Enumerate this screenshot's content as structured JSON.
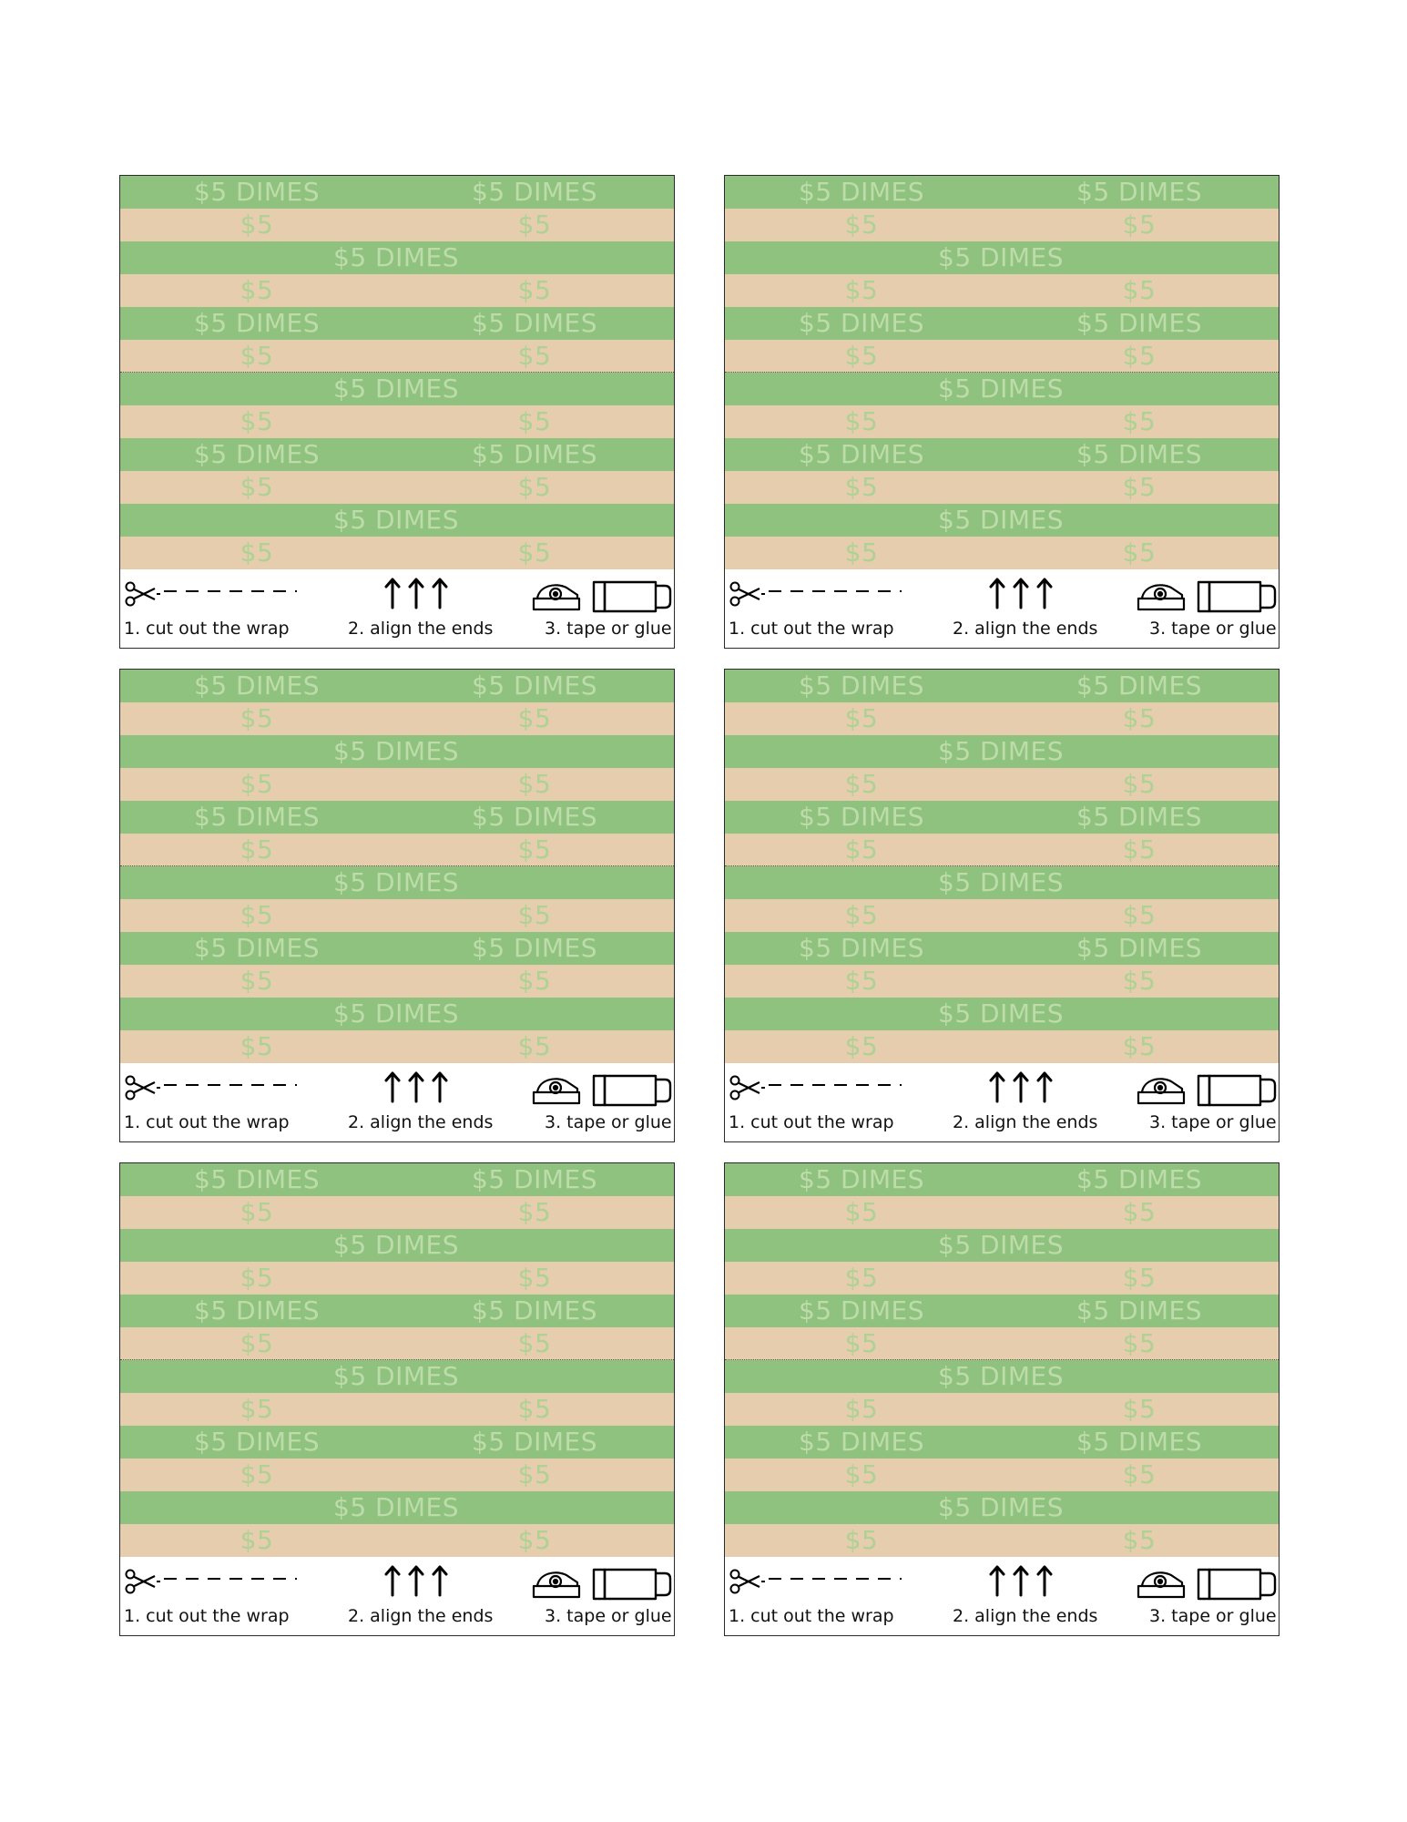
{
  "wrapper": {
    "dimes_label": "$5 DIMES",
    "short_label": "$5",
    "colors": {
      "green_band": "#8fc27e",
      "tan_band": "#e6cdae",
      "label_text": "#bddcaa"
    },
    "steps": {
      "cut": "1. cut out the wrap",
      "align": "2. align the ends",
      "tape": "3. tape or glue"
    },
    "icons": [
      "scissors-icon",
      "up-arrows-icon",
      "tape-dispenser-icon",
      "glue-stick-icon"
    ]
  },
  "sheet": {
    "wrapper_count": 6,
    "layout": "3 rows x 2 columns"
  }
}
